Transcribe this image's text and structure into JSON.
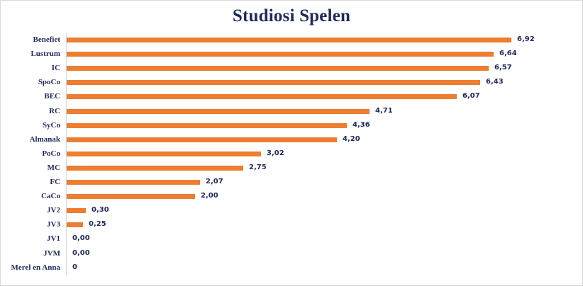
{
  "chart_data": {
    "type": "bar",
    "orientation": "horizontal",
    "title": "Studiosi Spelen",
    "xlabel": "",
    "ylabel": "",
    "grid": false,
    "legend": "none",
    "bar_color": "#ed7d31",
    "categories": [
      "Benefiet",
      "Lustrum",
      "IC",
      "SpoCo",
      "BEC",
      "RC",
      "SyCo",
      "Almanak",
      "PoCo",
      "MC",
      "FC",
      "CaCo",
      "JV2",
      "JV3",
      "JV1",
      "JVM",
      "Merel en Anna"
    ],
    "values": [
      6.92,
      6.64,
      6.57,
      6.43,
      6.07,
      4.71,
      4.36,
      4.2,
      3.02,
      2.75,
      2.07,
      2.0,
      0.3,
      0.25,
      0.0,
      0.0,
      0
    ],
    "value_labels": [
      "6,92",
      "6,64",
      "6,57",
      "6,43",
      "6,07",
      "4,71",
      "4,36",
      "4,20",
      "3,02",
      "2,75",
      "2,07",
      "2,00",
      "0,30",
      "0,25",
      "0,00",
      "0,00",
      "0"
    ]
  },
  "colors": {
    "bar": "#ed7d31",
    "text": "#1f2a5a",
    "axis": "#d9d9d9"
  }
}
